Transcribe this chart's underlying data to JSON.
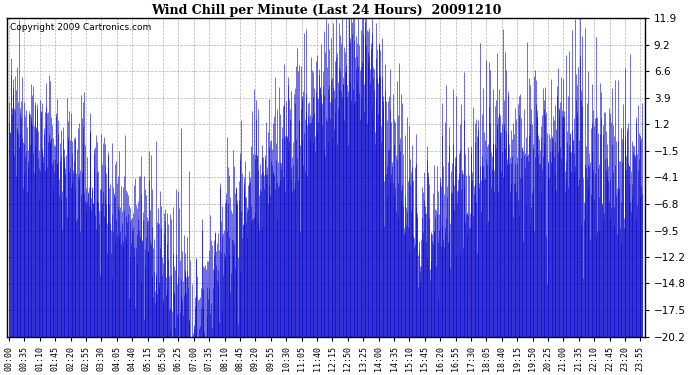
{
  "title": "Wind Chill per Minute (Last 24 Hours)  20091210",
  "copyright": "Copyright 2009 Cartronics.com",
  "line_color": "#0000cc",
  "background_color": "#ffffff",
  "yticks": [
    11.9,
    9.2,
    6.6,
    3.9,
    1.2,
    -1.5,
    -4.1,
    -6.8,
    -9.5,
    -12.2,
    -14.8,
    -17.5,
    -20.2
  ],
  "ylim_min": -20.2,
  "ylim_max": 11.9,
  "xtick_labels": [
    "00:00",
    "00:35",
    "01:10",
    "01:45",
    "02:20",
    "02:55",
    "03:30",
    "04:05",
    "04:40",
    "05:15",
    "05:50",
    "06:25",
    "07:00",
    "07:35",
    "08:10",
    "08:45",
    "09:20",
    "09:55",
    "10:30",
    "11:05",
    "11:40",
    "12:15",
    "12:50",
    "13:25",
    "14:00",
    "14:35",
    "15:10",
    "15:45",
    "16:20",
    "16:55",
    "17:30",
    "18:05",
    "18:40",
    "19:15",
    "19:50",
    "20:25",
    "21:00",
    "21:35",
    "22:10",
    "22:45",
    "23:20",
    "23:55"
  ],
  "seed": 12345,
  "n_minutes": 1440,
  "figwidth": 6.9,
  "figheight": 3.75,
  "dpi": 100
}
